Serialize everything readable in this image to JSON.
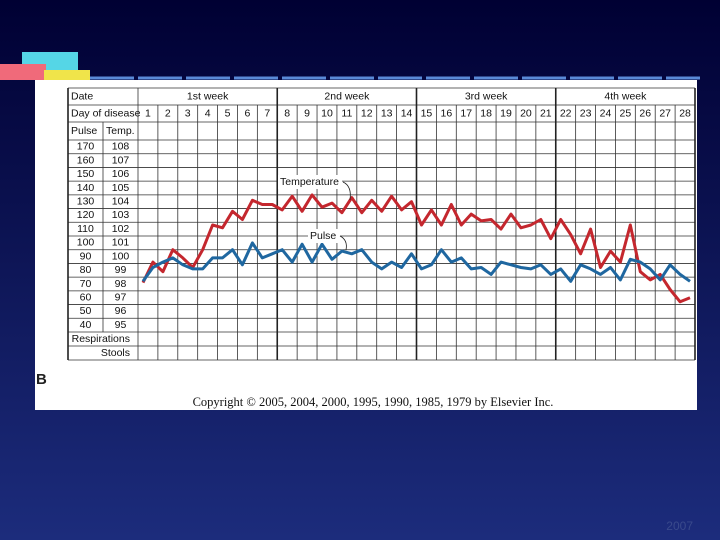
{
  "chart_data": {
    "type": "line",
    "date_label": "Date",
    "day_label": "Day of disease",
    "pulse_header": "Pulse",
    "temp_header": "Temp.",
    "weeks": [
      "1st week",
      "2nd week",
      "3rd week",
      "4th week"
    ],
    "row_labels": [
      "Respirations",
      "Stools"
    ],
    "annotations": [
      "Temperature",
      "Pulse"
    ],
    "caption": "Copyright © 2005, 2004, 2000, 1995, 1990, 1985, 1979 by Elsevier Inc.",
    "x": [
      0.75,
      1.25,
      1.75,
      2.25,
      2.75,
      3.25,
      3.75,
      4.25,
      4.75,
      5.25,
      5.75,
      6.25,
      6.75,
      7.25,
      7.75,
      8.25,
      8.75,
      9.25,
      9.75,
      10.25,
      10.75,
      11.25,
      11.75,
      12.25,
      12.75,
      13.25,
      13.75,
      14.25,
      14.75,
      15.25,
      15.75,
      16.25,
      16.75,
      17.25,
      17.75,
      18.25,
      18.75,
      19.25,
      19.75,
      20.25,
      20.75,
      21.25,
      21.75,
      22.25,
      22.75,
      23.25,
      23.75,
      24.25,
      24.75,
      25.25,
      25.75,
      26.25,
      26.75,
      27.25,
      27.75,
      28.25
    ],
    "xlim": [
      0.5,
      28.5
    ],
    "xticks": [
      1,
      2,
      3,
      4,
      5,
      6,
      7,
      8,
      9,
      10,
      11,
      12,
      13,
      14,
      15,
      16,
      17,
      18,
      19,
      20,
      21,
      22,
      23,
      24,
      25,
      26,
      27,
      28
    ],
    "ylim": [
      94.5,
      108.5
    ],
    "yticks": [
      108,
      107,
      106,
      105,
      104,
      103,
      102,
      101,
      100,
      99,
      98,
      97,
      96,
      95
    ],
    "y2lim": [
      35,
      175
    ],
    "y2ticks": [
      170,
      160,
      150,
      140,
      130,
      120,
      110,
      100,
      90,
      80,
      70,
      60,
      50,
      40
    ],
    "series": [
      {
        "name": "Temperature",
        "color": "#c4272e",
        "values": [
          98.1,
          99.6,
          98.9,
          100.5,
          99.9,
          99.2,
          100.5,
          102.3,
          102.1,
          103.3,
          102.7,
          104.1,
          103.8,
          103.8,
          103.4,
          104.4,
          103.3,
          104.5,
          103.6,
          103.9,
          103.2,
          104.3,
          103.2,
          104.1,
          103.3,
          104.4,
          103.4,
          104.0,
          102.3,
          103.4,
          102.3,
          103.8,
          102.3,
          103.1,
          102.6,
          102.7,
          102.0,
          103.1,
          102.1,
          102.3,
          102.7,
          101.3,
          102.7,
          101.6,
          100.2,
          102.0,
          99.2,
          100.4,
          99.6,
          102.3,
          98.9,
          98.3,
          98.7,
          97.6,
          96.7,
          97.0
        ]
      },
      {
        "name": "Pulse",
        "color": "#1f67a0",
        "axis": "y2",
        "values": [
          72,
          82,
          86,
          89,
          84,
          81,
          81,
          89,
          89,
          95,
          84,
          100,
          89,
          92,
          95,
          86,
          99,
          86,
          99,
          88,
          94,
          92,
          95,
          86,
          81,
          86,
          82,
          92,
          81,
          84,
          95,
          86,
          89,
          81,
          82,
          77,
          86,
          84,
          82,
          81,
          84,
          77,
          81,
          72,
          84,
          81,
          77,
          82,
          73,
          88,
          86,
          81,
          73,
          84,
          77,
          72
        ]
      }
    ]
  },
  "slide": {
    "panel_label": "B",
    "footer": "2007"
  }
}
